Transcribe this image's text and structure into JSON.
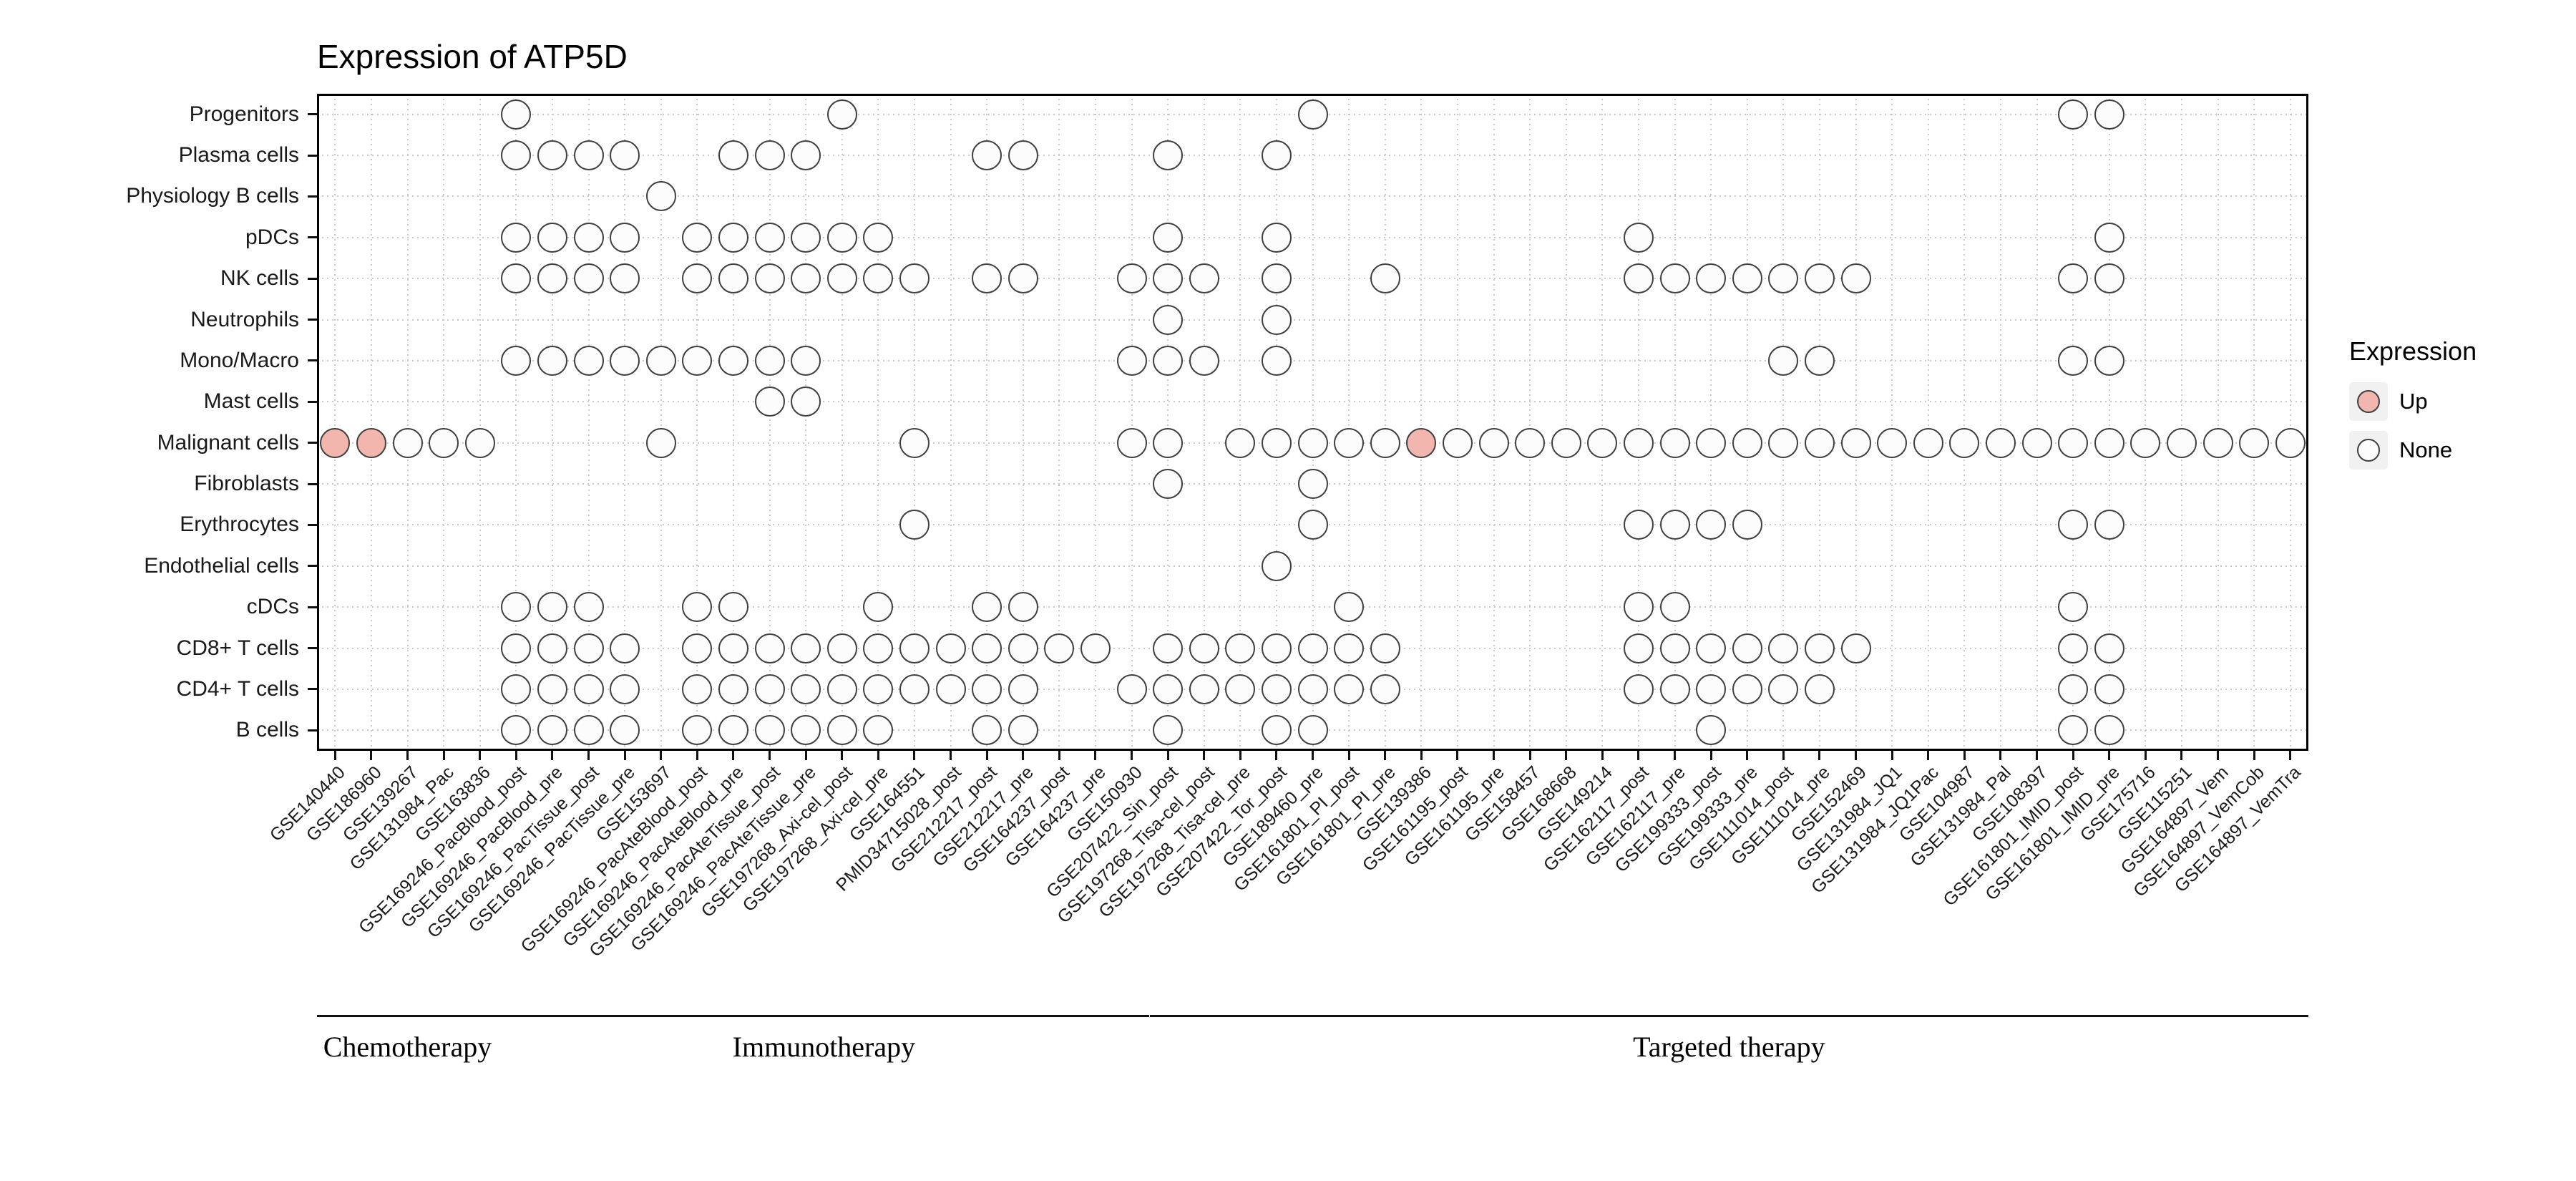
{
  "chart_data": {
    "type": "heatmap",
    "title": "Expression of ATP5D",
    "xlabel": "",
    "ylabel": "",
    "legend": {
      "title": "Expression",
      "items": [
        {
          "label": "Up",
          "type": "up"
        },
        {
          "label": "None",
          "type": "none"
        }
      ]
    },
    "colors": {
      "up_fill": "#f2b6ae",
      "none_fill": "#fcfcfc",
      "stroke": "#3f3f3f",
      "grid": "#c9c9c9",
      "border": "#000000"
    },
    "rows": [
      "Progenitors",
      "Plasma cells",
      "Physiology B cells",
      "pDCs",
      "NK cells",
      "Neutrophils",
      "Mono/Macro",
      "Mast cells",
      "Malignant cells",
      "Fibroblasts",
      "Erythrocytes",
      "Endothelial cells",
      "cDCs",
      "CD8+ T cells",
      "CD4+ T cells",
      "B cells"
    ],
    "columns": [
      "GSE140440",
      "GSE186960",
      "GSE139267",
      "GSE131984_Pac",
      "GSE163836",
      "GSE169246_PacBlood_post",
      "GSE169246_PacBlood_pre",
      "GSE169246_PacTissue_post",
      "GSE169246_PacTissue_pre",
      "GSE153697",
      "GSE169246_PacAteBlood_post",
      "GSE169246_PacAteBlood_pre",
      "GSE169246_PacAteTissue_post",
      "GSE169246_PacAteTissue_pre",
      "GSE197268_Axi-cel_post",
      "GSE197268_Axi-cel_pre",
      "GSE164551",
      "PMID34715028_post",
      "GSE212217_post",
      "GSE212217_pre",
      "GSE164237_post",
      "GSE164237_pre",
      "GSE150930",
      "GSE207422_Sin_post",
      "GSE197268_Tisa-cel_post",
      "GSE197268_Tisa-cel_pre",
      "GSE207422_Tor_post",
      "GSE189460_pre",
      "GSE161801_PI_post",
      "GSE161801_PI_pre",
      "GSE139386",
      "GSE161195_post",
      "GSE161195_pre",
      "GSE158457",
      "GSE168668",
      "GSE149214",
      "GSE162117_post",
      "GSE162117_pre",
      "GSE199333_post",
      "GSE199333_pre",
      "GSE111014_post",
      "GSE111014_pre",
      "GSE152469",
      "GSE131984_JQ1",
      "GSE131984_JQ1Pac",
      "GSE104987",
      "GSE131984_Pal",
      "GSE108397",
      "GSE161801_IMID_post",
      "GSE161801_IMID_pre",
      "GSE175716",
      "GSE115251",
      "GSE164897_Vem",
      "GSE164897_VemCob",
      "GSE164897_VemTra"
    ],
    "groups": [
      {
        "label": "Chemotherapy",
        "start": 0,
        "end": 4
      },
      {
        "label": "Immunotherapy",
        "start": 5,
        "end": 22
      },
      {
        "label": "Targeted therapy",
        "start": 23,
        "end": 54
      }
    ],
    "cells": [
      {
        "row": "Progenitors",
        "none": [
          5,
          14,
          27,
          48,
          49
        ],
        "up": []
      },
      {
        "row": "Plasma cells",
        "none": [
          5,
          6,
          7,
          8,
          11,
          12,
          13,
          18,
          19,
          23,
          26
        ],
        "up": []
      },
      {
        "row": "Physiology B cells",
        "none": [
          9
        ],
        "up": []
      },
      {
        "row": "pDCs",
        "none": [
          5,
          6,
          7,
          8,
          10,
          11,
          12,
          13,
          14,
          15,
          23,
          26,
          36,
          49
        ],
        "up": []
      },
      {
        "row": "NK cells",
        "none": [
          5,
          6,
          7,
          8,
          10,
          11,
          12,
          13,
          14,
          15,
          16,
          18,
          19,
          22,
          23,
          24,
          26,
          29,
          36,
          37,
          38,
          39,
          40,
          41,
          42,
          48,
          49
        ],
        "up": []
      },
      {
        "row": "Neutrophils",
        "none": [
          23,
          26
        ],
        "up": []
      },
      {
        "row": "Mono/Macro",
        "none": [
          5,
          6,
          7,
          8,
          9,
          10,
          11,
          12,
          13,
          22,
          23,
          24,
          26,
          40,
          41,
          48,
          49
        ],
        "up": []
      },
      {
        "row": "Mast cells",
        "none": [
          12,
          13
        ],
        "up": []
      },
      {
        "row": "Malignant cells",
        "none": [
          2,
          3,
          4,
          9,
          16,
          22,
          23,
          25,
          26,
          27,
          28,
          29,
          31,
          32,
          33,
          34,
          35,
          36,
          37,
          38,
          39,
          40,
          41,
          42,
          43,
          44,
          45,
          46,
          47,
          48,
          49,
          50,
          51,
          52,
          53,
          54
        ],
        "up": [
          0,
          1,
          30
        ]
      },
      {
        "row": "Fibroblasts",
        "none": [
          23,
          27
        ],
        "up": []
      },
      {
        "row": "Erythrocytes",
        "none": [
          16,
          27,
          36,
          37,
          38,
          39,
          48,
          49
        ],
        "up": []
      },
      {
        "row": "Endothelial cells",
        "none": [
          26
        ],
        "up": []
      },
      {
        "row": "cDCs",
        "none": [
          5,
          6,
          7,
          10,
          11,
          15,
          18,
          19,
          28,
          36,
          37,
          48
        ],
        "up": []
      },
      {
        "row": "CD8+ T cells",
        "none": [
          5,
          6,
          7,
          8,
          10,
          11,
          12,
          13,
          14,
          15,
          16,
          17,
          18,
          19,
          20,
          21,
          23,
          24,
          25,
          26,
          27,
          28,
          29,
          36,
          37,
          38,
          39,
          40,
          41,
          42,
          48,
          49
        ],
        "up": []
      },
      {
        "row": "CD4+ T cells",
        "none": [
          5,
          6,
          7,
          8,
          10,
          11,
          12,
          13,
          14,
          15,
          16,
          17,
          18,
          19,
          22,
          23,
          24,
          25,
          26,
          27,
          28,
          29,
          36,
          37,
          38,
          39,
          40,
          41,
          48,
          49
        ],
        "up": []
      },
      {
        "row": "B cells",
        "none": [
          5,
          6,
          7,
          8,
          10,
          11,
          12,
          13,
          14,
          15,
          18,
          19,
          23,
          26,
          27,
          38,
          48,
          49
        ],
        "up": []
      }
    ]
  }
}
